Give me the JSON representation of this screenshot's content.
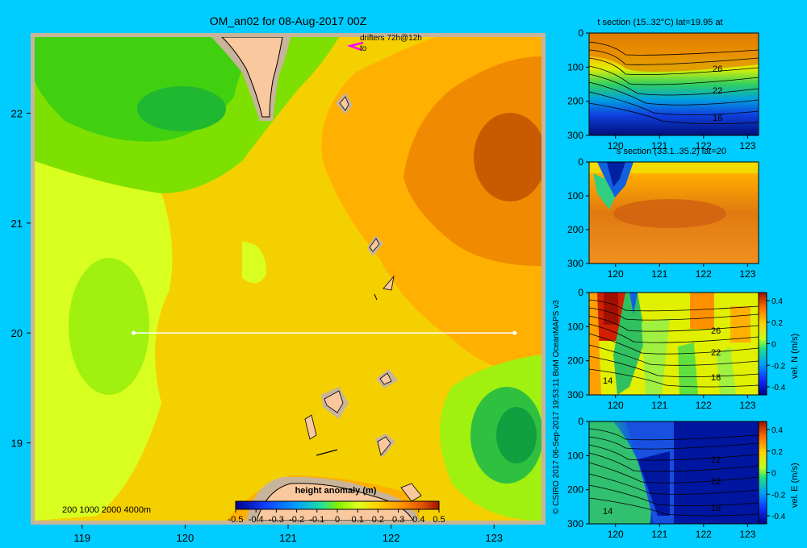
{
  "title": "OM_an02 for 08-Aug-2017 00Z",
  "credit": "© CSIRO 2017   06-Sep-2017 19:53:11 BoM OceanMAPS v3",
  "drifters_label": "drifters 72h@12h",
  "drifters_sub": "to",
  "depth_legend": "200  1000  2000  4000m",
  "colors": {
    "background": "#00ccff",
    "land": "#f9c89f",
    "shelf": "#c8b49b",
    "section_line": "#ffffff",
    "drifter": "#ff00ff"
  },
  "chart_data": [
    {
      "type": "heatmap",
      "name": "map",
      "xlabel": "",
      "ylabel": "",
      "xlim": [
        118.5,
        123.5
      ],
      "ylim": [
        18.3,
        22.7
      ],
      "xticks": [
        "119",
        "120",
        "121",
        "122",
        "123"
      ],
      "yticks": [
        "19",
        "20",
        "21",
        "22"
      ],
      "colorbar_title": "height anomaly  (m)",
      "colorbar_ticks": [
        "-0.5",
        "-0.4",
        "-0.3",
        "-0.2",
        "-0.1",
        "0",
        "0.1",
        "0.2",
        "0.3",
        "0.4",
        "0.5"
      ],
      "colorbar_range": [
        -0.5,
        0.5
      ],
      "section_line": {
        "lat": 20,
        "lon_start": 119.5,
        "lon_end": 123.2
      },
      "features": [
        {
          "label": "positive anomaly (orange)",
          "lon": 123.0,
          "lat": 21.6,
          "value": 0.35
        },
        {
          "label": "negative anomaly (green)",
          "lon": 119.6,
          "lat": 21.9,
          "value": -0.05
        },
        {
          "label": "negative anomaly (green)",
          "lon": 123.2,
          "lat": 19.1,
          "value": -0.05
        },
        {
          "label": "weak anomaly (yellow-green)",
          "lon": 119.4,
          "lat": 20.3,
          "value": 0.02
        }
      ]
    },
    {
      "type": "heatmap",
      "name": "t_section",
      "title": "t section (15..32°C) lat=19.95 at",
      "xticks": [
        "120",
        "121",
        "122",
        "123"
      ],
      "yticks": [
        "0",
        "100",
        "200",
        "300"
      ],
      "contour_labels": [
        "26",
        "22",
        "16"
      ],
      "colorbar": false
    },
    {
      "type": "heatmap",
      "name": "s_section",
      "title": "s section (33.1..35.2) lat=20",
      "xticks": [
        "120",
        "121",
        "122",
        "123"
      ],
      "yticks": [
        "0",
        "100",
        "200",
        "300"
      ],
      "contour_labels": [],
      "colorbar": false
    },
    {
      "type": "heatmap",
      "name": "vel_n_section",
      "title": "",
      "xticks": [
        "120",
        "121",
        "122",
        "123"
      ],
      "yticks": [
        "0",
        "100",
        "200",
        "300"
      ],
      "contour_labels": [
        "26",
        "22",
        "18",
        "14"
      ],
      "colorbar": true,
      "colorbar_label": "vel. N (m/s)",
      "colorbar_ticks": [
        "0.4",
        "0.2",
        "0",
        "-0.2",
        "-0.4"
      ]
    },
    {
      "type": "heatmap",
      "name": "vel_e_section",
      "title": "",
      "xticks": [
        "120",
        "121",
        "122",
        "123"
      ],
      "yticks": [
        "0",
        "100",
        "200",
        "300"
      ],
      "contour_labels": [
        "22",
        "22",
        "16",
        "14"
      ],
      "colorbar": true,
      "colorbar_label": "vel. E (m/s)",
      "colorbar_ticks": [
        "0.4",
        "0.2",
        "0",
        "-0.2",
        "-0.4"
      ]
    }
  ]
}
